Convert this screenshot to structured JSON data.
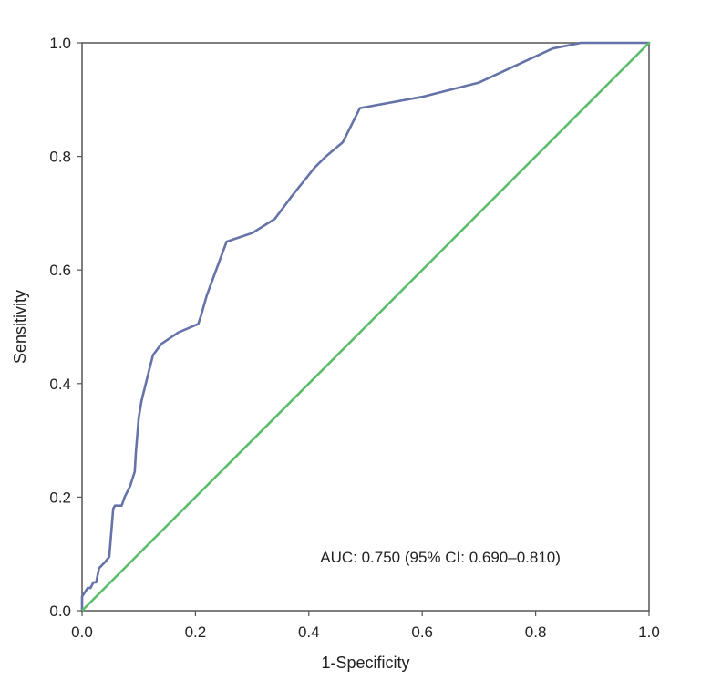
{
  "chart_data": {
    "type": "line",
    "xlabel": "1-Specificity",
    "ylabel": "Sensitivity",
    "xlim": [
      0,
      1
    ],
    "ylim": [
      0,
      1
    ],
    "x_ticks": [
      "0.0",
      "0.2",
      "0.4",
      "0.6",
      "0.8",
      "1.0"
    ],
    "y_ticks": [
      "0.0",
      "0.2",
      "0.4",
      "0.6",
      "0.8",
      "1.0"
    ],
    "grid": false,
    "annotation": "AUC: 0.750 (95% CI: 0.690–0.810)",
    "series": [
      {
        "color": "#6673a8",
        "x": [
          0.0,
          0.0,
          0.01,
          0.015,
          0.02,
          0.025,
          0.03,
          0.04,
          0.048,
          0.055,
          0.058,
          0.07,
          0.075,
          0.085,
          0.093,
          0.095,
          0.1,
          0.105,
          0.115,
          0.125,
          0.14,
          0.17,
          0.205,
          0.21,
          0.22,
          0.255,
          0.3,
          0.34,
          0.37,
          0.41,
          0.43,
          0.46,
          0.49,
          0.6,
          0.7,
          0.83,
          0.88,
          1.0
        ],
        "y": [
          0.0,
          0.025,
          0.04,
          0.04,
          0.05,
          0.05,
          0.075,
          0.085,
          0.095,
          0.18,
          0.185,
          0.185,
          0.2,
          0.22,
          0.245,
          0.28,
          0.34,
          0.37,
          0.41,
          0.45,
          0.47,
          0.49,
          0.505,
          0.52,
          0.555,
          0.65,
          0.665,
          0.69,
          0.73,
          0.78,
          0.8,
          0.825,
          0.885,
          0.905,
          0.93,
          0.99,
          1.0,
          1.0
        ]
      },
      {
        "color": "#5cbc6a",
        "x": [
          0,
          1
        ],
        "y": [
          0,
          1
        ]
      }
    ]
  }
}
